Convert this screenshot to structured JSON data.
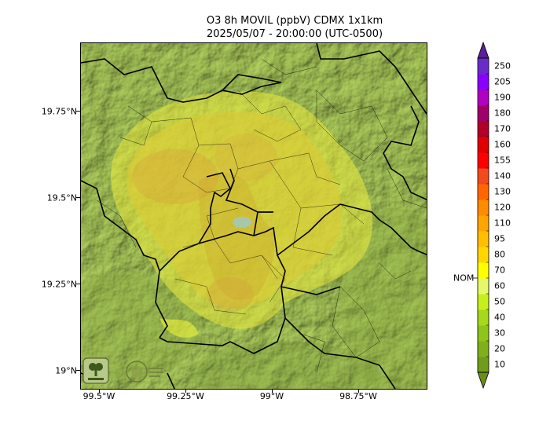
{
  "title": {
    "line1": "O3 8h MOVIL (ppbV) CDMX 1x1km",
    "line2": "2025/05/07 - 20:00:00 (UTC-0500)"
  },
  "axes": {
    "latitude_ticks": [
      {
        "label": "19.75°N",
        "value": 19.75
      },
      {
        "label": "19.5°N",
        "value": 19.5
      },
      {
        "label": "19.25°N",
        "value": 19.25
      },
      {
        "label": "19°N",
        "value": 19.0
      }
    ],
    "longitude_ticks": [
      {
        "label": "99.5°W",
        "value": -99.5
      },
      {
        "label": "99.25°W",
        "value": -99.25
      },
      {
        "label": "99°W",
        "value": -99.0
      },
      {
        "label": "98.75°W",
        "value": -98.75
      }
    ]
  },
  "colorbar": {
    "levels": [
      10,
      20,
      30,
      40,
      50,
      60,
      70,
      80,
      95,
      110,
      120,
      130,
      140,
      155,
      160,
      170,
      180,
      190,
      205,
      250
    ],
    "labels": [
      "10",
      "20",
      "30",
      "40",
      "50",
      "60",
      "70",
      "80",
      "95",
      "110",
      "120",
      "130",
      "140",
      "155",
      "160",
      "170",
      "180",
      "190",
      "205",
      "250"
    ],
    "colors": [
      "#6f9d1b",
      "#7fb01c",
      "#8fc41a",
      "#a6d81c",
      "#c6ef1d",
      "#e5f86a",
      "#ffff00",
      "#ffd700",
      "#ffbf00",
      "#ffa500",
      "#ff8c00",
      "#ff6600",
      "#f04a1e",
      "#ff0000",
      "#e00000",
      "#b0002a",
      "#a0006a",
      "#b000c0",
      "#8a00ff",
      "#6a2cc8"
    ],
    "nom_label": "NOM",
    "nom_value": 65
  },
  "logos": {
    "left": "SEDEMA",
    "right": "CIUDAD DE MÉXICO"
  }
}
